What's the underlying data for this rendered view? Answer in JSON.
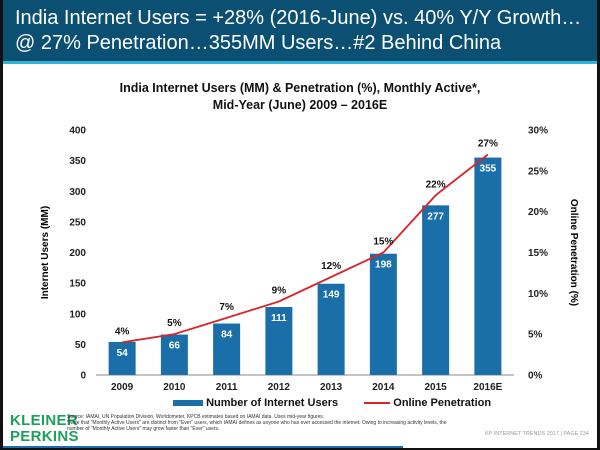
{
  "header": {
    "line1": "India Internet Users = +28% (2016-June) vs. 40% Y/Y Growth…",
    "line2": "@ 27% Penetration…355MM Users…#2 Behind China"
  },
  "chart_data": {
    "type": "bar+line",
    "title": "India Internet Users (MM) & Penetration (%), Monthly Active*,",
    "subtitle": "Mid-Year (June) 2009 – 2016E",
    "categories": [
      "2009",
      "2010",
      "2011",
      "2012",
      "2013",
      "2014",
      "2015",
      "2016E"
    ],
    "series": [
      {
        "name": "Number of Internet Users",
        "type": "bar",
        "axis": "left",
        "color": "#1b6fa8",
        "values": [
          54,
          66,
          84,
          111,
          149,
          198,
          277,
          355
        ]
      },
      {
        "name": "Online Penetration",
        "type": "line",
        "axis": "right",
        "color": "#d9252a",
        "values": [
          4,
          5,
          7,
          9,
          12,
          15,
          22,
          27
        ],
        "labels": [
          "4%",
          "5%",
          "7%",
          "9%",
          "12%",
          "15%",
          "22%",
          "27%"
        ]
      }
    ],
    "ylabel": "Internet Users (MM)",
    "ylim": [
      0,
      400
    ],
    "yticks": [
      "0",
      "50",
      "100",
      "150",
      "200",
      "250",
      "300",
      "350",
      "400"
    ],
    "y2label": "Online Penetration (%)",
    "y2lim": [
      0,
      30
    ],
    "y2ticks": [
      "0%",
      "5%",
      "10%",
      "15%",
      "20%",
      "25%",
      "30%"
    ],
    "legend": "bottom",
    "grid": false
  },
  "footer": {
    "logo": [
      "KLEINER",
      "PERKINS"
    ],
    "source": "Source: IAMAI, UN Population Division, Worldometer, KPCB estimates based on IAMAI data. Uses mid-year figures.",
    "note": "*Note that \"Monthly Active Users\" are distinct from \"Ever\" users, which IAMAI defines as anyone who has ever accessed the internet. Owing to increasing activity levels, the number of \"Monthly Active Users\" may grow faster than \"Ever\" users.",
    "page": "KP INTERNET TRENDS 2017  |  PAGE 234"
  }
}
